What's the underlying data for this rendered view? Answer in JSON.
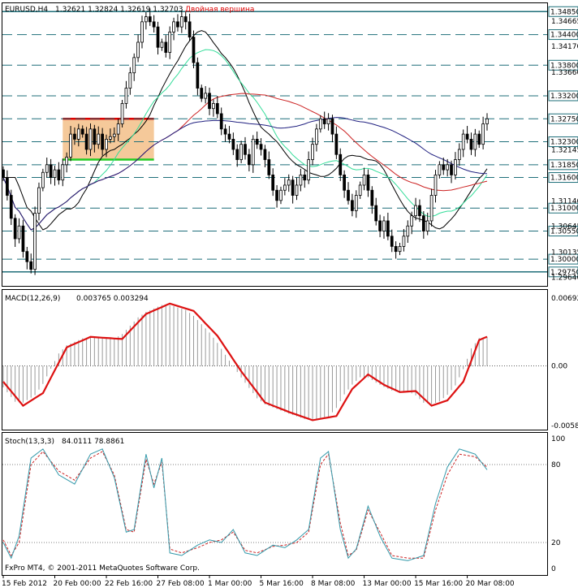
{
  "header": {
    "symbol": "EURUSD,H4",
    "ohlc": "1.32621 1.32824 1.32619 1.32703",
    "annotation": "Двойная вершина"
  },
  "macd_header": {
    "label": "MACD(12,26,9)",
    "values": "0.003765 0.003294"
  },
  "stoch_header": {
    "label": "Stoch(13,3,3)",
    "values": "84.0111 78.8861"
  },
  "copyright": "FxPro MT4, © 2001-2011 MetaQuotes Software Corp.",
  "colors": {
    "candle": "#000000",
    "level_line": "#1f6f7a",
    "ma_black": "#000000",
    "ma_green": "#33dd99",
    "ma_red": "#cc2222",
    "ma_blue": "#202080",
    "macd_signal": "#dd1111",
    "macd_hist": "#999999",
    "stoch_main": "#3399aa",
    "stoch_signal": "#cc2222",
    "box_fill": "#f5c99a",
    "box_top": "#dd0000",
    "box_bottom": "#22cc22",
    "annotation": "#dd0000"
  },
  "chart_data": [
    {
      "type": "candlestick",
      "name": "EURUSD,H4 price",
      "x_ticks": [
        "15 Feb 2012",
        "20 Feb 00:00",
        "22 Feb 16:00",
        "27 Feb 08:00",
        "1 Mar 00:00",
        "5 Mar 16:00",
        "8 Mar 08:00",
        "13 Mar 00:00",
        "15 Mar 16:00",
        "20 Mar 08:00"
      ],
      "ylim": [
        1.2954,
        1.3495
      ],
      "y_tick_labels": [
        "1.34665",
        "1.34170",
        "1.33660",
        "1.32145",
        "1.31140",
        "1.30645",
        "1.30135",
        "1.29640"
      ],
      "levels": [
        "1.34850",
        "1.34400",
        "1.33800",
        "1.33200",
        "1.32750",
        "1.32300",
        "1.31850",
        "1.31600",
        "1.31000",
        "1.30550",
        "1.30000",
        "1.29750"
      ],
      "level_values": [
        1.3485,
        1.344,
        1.338,
        1.332,
        1.3275,
        1.323,
        1.3185,
        1.316,
        1.31,
        1.3055,
        1.3,
        1.2975
      ],
      "closes": [
        1.316,
        1.3125,
        1.308,
        1.304,
        1.3065,
        1.3015,
        1.2995,
        1.298,
        1.309,
        1.314,
        1.317,
        1.3185,
        1.316,
        1.3175,
        1.3155,
        1.3185,
        1.32,
        1.3245,
        1.3235,
        1.3255,
        1.3245,
        1.3215,
        1.3255,
        1.3225,
        1.3245,
        1.3215,
        1.3235,
        1.324,
        1.3245,
        1.3265,
        1.3305,
        1.3335,
        1.3365,
        1.3395,
        1.3425,
        1.3465,
        1.3475,
        1.3465,
        1.3455,
        1.3415,
        1.3425,
        1.3405,
        1.3445,
        1.3465,
        1.3455,
        1.3475,
        1.3465,
        1.3435,
        1.3385,
        1.3335,
        1.3315,
        1.3325,
        1.3295,
        1.3305,
        1.3285,
        1.3255,
        1.3245,
        1.3235,
        1.3215,
        1.3195,
        1.3225,
        1.3205,
        1.3185,
        1.3235,
        1.3225,
        1.3215,
        1.3195,
        1.3165,
        1.3135,
        1.3115,
        1.3135,
        1.3145,
        1.3155,
        1.3125,
        1.3145,
        1.3165,
        1.3155,
        1.3195,
        1.3225,
        1.3255,
        1.3275,
        1.3265,
        1.3275,
        1.3245,
        1.3205,
        1.3165,
        1.3135,
        1.3115,
        1.3095,
        1.3125,
        1.3145,
        1.3165,
        1.3135,
        1.3105,
        1.3075,
        1.3055,
        1.3075,
        1.3045,
        1.3025,
        1.3015,
        1.3025,
        1.3045,
        1.3065,
        1.3085,
        1.3105,
        1.3085,
        1.3055,
        1.3075,
        1.3125,
        1.3165,
        1.3185,
        1.3175,
        1.3185,
        1.3165,
        1.3195,
        1.3215,
        1.3245,
        1.3235,
        1.3215,
        1.3245,
        1.3225,
        1.3265,
        1.3275
      ],
      "series_legend": [
        "MA black",
        "MA green",
        "MA red",
        "MA blue"
      ]
    },
    {
      "type": "bar+line",
      "name": "MACD(12,26,9)",
      "ylim": [
        -0.00587,
        0.00692
      ],
      "y_tick_labels": [
        "0.00692",
        "0.00",
        "-0.00587"
      ],
      "values_latest": [
        0.003765,
        0.003294
      ],
      "signal_keypoints": [
        [
          0,
          -0.0015
        ],
        [
          5,
          -0.0038
        ],
        [
          10,
          -0.0026
        ],
        [
          16,
          0.0018
        ],
        [
          22,
          0.0028
        ],
        [
          30,
          0.0026
        ],
        [
          36,
          0.005
        ],
        [
          42,
          0.006
        ],
        [
          48,
          0.0053
        ],
        [
          54,
          0.0029
        ],
        [
          60,
          -0.0005
        ],
        [
          66,
          -0.0035
        ],
        [
          72,
          -0.0044
        ],
        [
          78,
          -0.0052
        ],
        [
          84,
          -0.0048
        ],
        [
          88,
          -0.0022
        ],
        [
          92,
          -0.0008
        ],
        [
          96,
          -0.0018
        ],
        [
          100,
          -0.0025
        ],
        [
          104,
          -0.0024
        ],
        [
          108,
          -0.0038
        ],
        [
          112,
          -0.0033
        ],
        [
          116,
          -0.0015
        ],
        [
          120,
          0.0025
        ],
        [
          125,
          0.0033
        ]
      ]
    },
    {
      "type": "line",
      "name": "Stoch(13,3,3)",
      "ylim": [
        0,
        100
      ],
      "y_tick_labels": [
        "100",
        "80",
        "20",
        "0"
      ],
      "values_latest": [
        84.0111,
        78.8861
      ],
      "main_keypoints": [
        [
          0,
          20
        ],
        [
          2,
          8
        ],
        [
          4,
          25
        ],
        [
          7,
          85
        ],
        [
          10,
          92
        ],
        [
          14,
          72
        ],
        [
          18,
          65
        ],
        [
          22,
          88
        ],
        [
          25,
          92
        ],
        [
          28,
          70
        ],
        [
          31,
          28
        ],
        [
          33,
          30
        ],
        [
          36,
          88
        ],
        [
          38,
          62
        ],
        [
          40,
          85
        ],
        [
          42,
          12
        ],
        [
          45,
          10
        ],
        [
          49,
          18
        ],
        [
          52,
          22
        ],
        [
          55,
          20
        ],
        [
          58,
          30
        ],
        [
          61,
          12
        ],
        [
          64,
          10
        ],
        [
          68,
          18
        ],
        [
          71,
          16
        ],
        [
          74,
          22
        ],
        [
          77,
          30
        ],
        [
          80,
          85
        ],
        [
          82,
          90
        ],
        [
          85,
          30
        ],
        [
          87,
          8
        ],
        [
          89,
          15
        ],
        [
          92,
          48
        ],
        [
          95,
          25
        ],
        [
          98,
          8
        ],
        [
          102,
          6
        ],
        [
          106,
          10
        ],
        [
          109,
          50
        ],
        [
          112,
          78
        ],
        [
          115,
          92
        ],
        [
          119,
          88
        ],
        [
          122,
          76
        ],
        [
          125,
          84
        ]
      ],
      "signal_keypoints": [
        [
          0,
          22
        ],
        [
          2,
          10
        ],
        [
          4,
          20
        ],
        [
          7,
          80
        ],
        [
          10,
          90
        ],
        [
          14,
          75
        ],
        [
          18,
          68
        ],
        [
          22,
          85
        ],
        [
          25,
          90
        ],
        [
          28,
          72
        ],
        [
          31,
          30
        ],
        [
          33,
          28
        ],
        [
          36,
          84
        ],
        [
          38,
          65
        ],
        [
          40,
          82
        ],
        [
          42,
          15
        ],
        [
          45,
          12
        ],
        [
          49,
          16
        ],
        [
          52,
          20
        ],
        [
          55,
          22
        ],
        [
          58,
          28
        ],
        [
          61,
          14
        ],
        [
          64,
          12
        ],
        [
          68,
          17
        ],
        [
          71,
          18
        ],
        [
          74,
          20
        ],
        [
          77,
          28
        ],
        [
          80,
          80
        ],
        [
          82,
          88
        ],
        [
          85,
          35
        ],
        [
          87,
          10
        ],
        [
          89,
          14
        ],
        [
          92,
          45
        ],
        [
          95,
          28
        ],
        [
          98,
          10
        ],
        [
          102,
          8
        ],
        [
          106,
          8
        ],
        [
          109,
          45
        ],
        [
          112,
          72
        ],
        [
          115,
          88
        ],
        [
          119,
          86
        ],
        [
          122,
          78
        ],
        [
          125,
          79
        ]
      ]
    }
  ]
}
